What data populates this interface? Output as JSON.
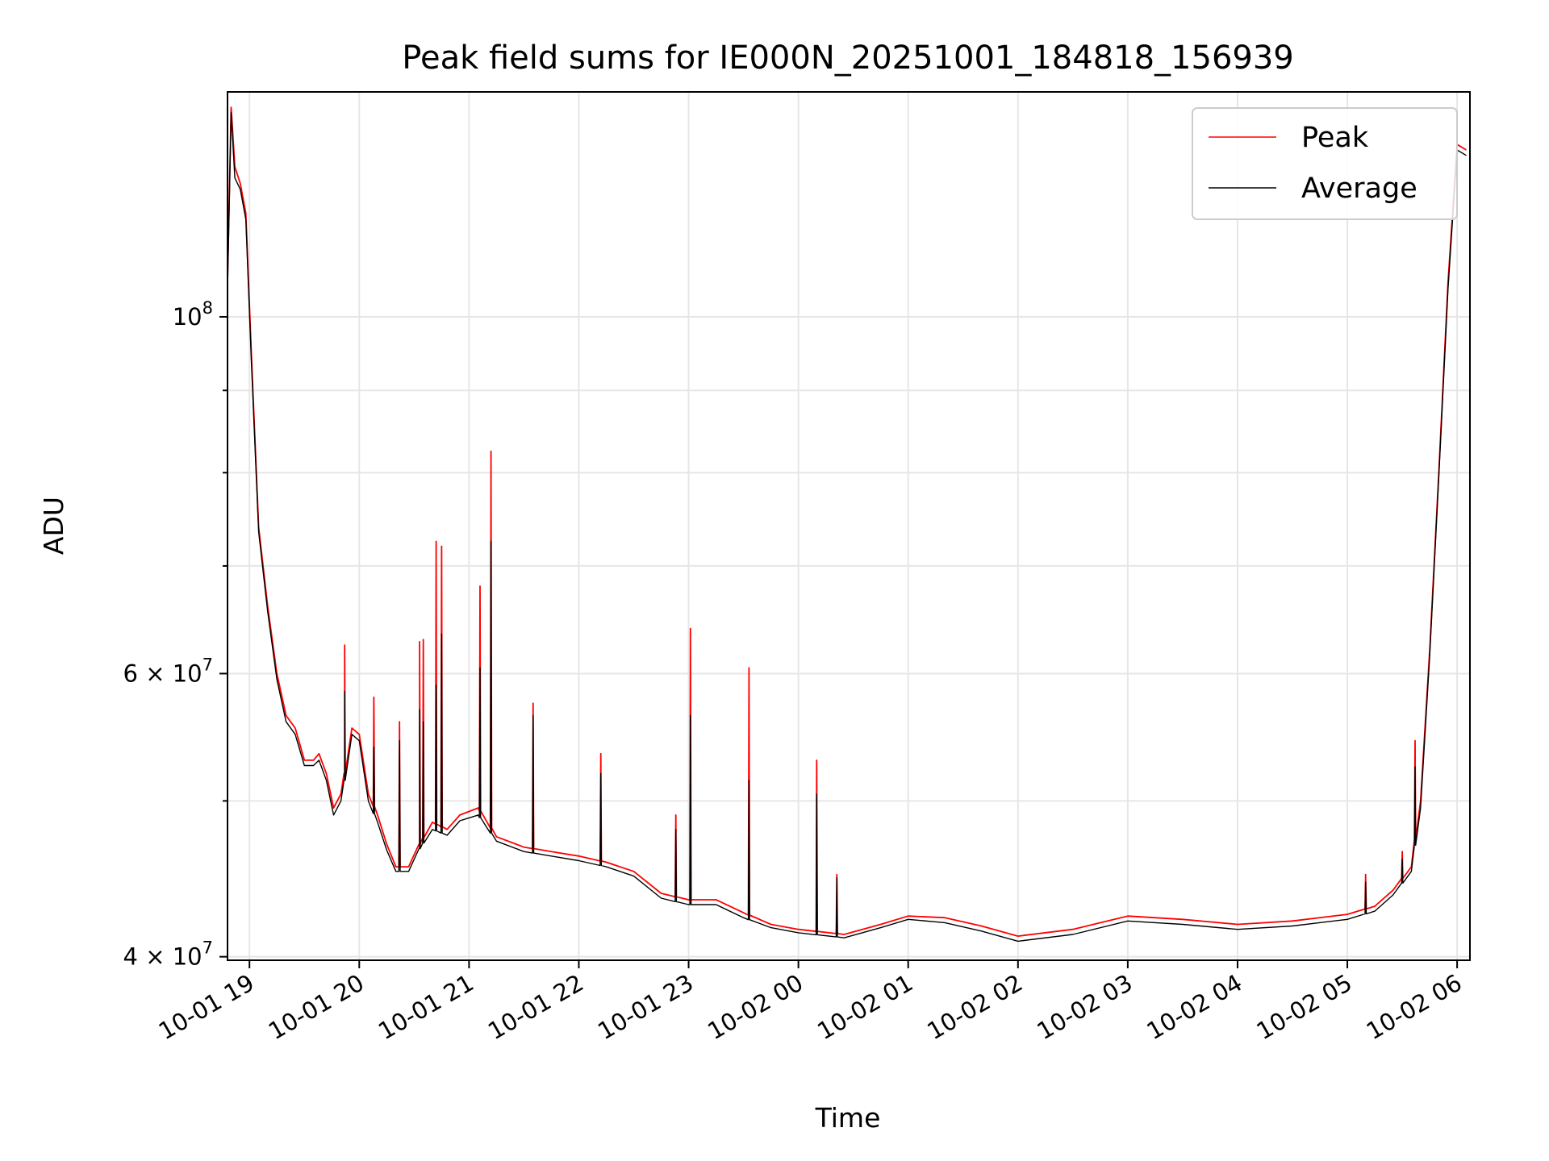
{
  "chart_data": {
    "type": "line",
    "title": "Peak field sums for IE000N_20251001_184818_156939",
    "xlabel": "Time",
    "ylabel": "ADU",
    "yscale": "log",
    "grid": true,
    "legend_placement": "upper right",
    "x_ticks": [
      "10-01 19",
      "10-01 20",
      "10-01 21",
      "10-01 22",
      "10-01 23",
      "10-02 00",
      "10-02 01",
      "10-02 02",
      "10-02 03",
      "10-02 04",
      "10-02 05",
      "10-02 06"
    ],
    "y_ticks": [
      {
        "value": 40000000,
        "base": "4",
        "exp": "7"
      },
      {
        "value": 60000000,
        "base": "6",
        "exp": "7"
      },
      {
        "value": 100000000,
        "base": "10",
        "exp": "8",
        "pure": true
      }
    ],
    "x_range": [
      "2025-10-01 18:48",
      "2025-10-02 06:07"
    ],
    "y_range": [
      39800000,
      138000000
    ],
    "series": [
      {
        "name": "Peak",
        "color": "#ff0000",
        "points": [
          [
            "2025-10-01 18:48",
            105000000
          ],
          [
            "2025-10-01 18:50",
            135000000
          ],
          [
            "2025-10-01 18:52",
            124000000
          ],
          [
            "2025-10-01 18:55",
            121000000
          ],
          [
            "2025-10-01 18:58",
            116000000
          ],
          [
            "2025-10-01 19:01",
            95000000
          ],
          [
            "2025-10-01 19:05",
            74000000
          ],
          [
            "2025-10-01 19:10",
            66000000
          ],
          [
            "2025-10-01 19:15",
            60000000
          ],
          [
            "2025-10-01 19:20",
            56500000
          ],
          [
            "2025-10-01 19:25",
            55500000
          ],
          [
            "2025-10-01 19:30",
            53000000
          ],
          [
            "2025-10-01 19:35",
            53000000
          ],
          [
            "2025-10-01 19:38",
            53500000
          ],
          [
            "2025-10-01 19:42",
            52000000
          ],
          [
            "2025-10-01 19:46",
            49500000
          ],
          [
            "2025-10-01 19:50",
            50500000
          ],
          [
            "2025-10-01 19:52",
            52000000
          ],
          [
            "2025-10-01 19:56",
            55500000
          ],
          [
            "2025-10-01 20:00",
            55000000
          ],
          [
            "2025-10-01 20:05",
            50500000
          ],
          [
            "2025-10-01 20:10",
            49000000
          ],
          [
            "2025-10-01 20:15",
            47000000
          ],
          [
            "2025-10-01 20:20",
            45500000
          ],
          [
            "2025-10-01 20:27",
            45500000
          ],
          [
            "2025-10-01 20:33",
            47000000
          ],
          [
            "2025-10-01 20:40",
            48500000
          ],
          [
            "2025-10-01 20:48",
            48000000
          ],
          [
            "2025-10-01 20:55",
            49000000
          ],
          [
            "2025-10-01 21:05",
            49500000
          ],
          [
            "2025-10-01 21:15",
            47500000
          ],
          [
            "2025-10-01 21:30",
            46800000
          ],
          [
            "2025-10-01 21:45",
            46500000
          ],
          [
            "2025-10-01 22:00",
            46200000
          ],
          [
            "2025-10-01 22:15",
            45800000
          ],
          [
            "2025-10-01 22:30",
            45200000
          ],
          [
            "2025-10-01 22:45",
            43800000
          ],
          [
            "2025-10-01 23:00",
            43400000
          ],
          [
            "2025-10-01 23:15",
            43400000
          ],
          [
            "2025-10-01 23:30",
            42600000
          ],
          [
            "2025-10-01 23:45",
            41900000
          ],
          [
            "2025-10-02 00:00",
            41600000
          ],
          [
            "2025-10-02 00:25",
            41300000
          ],
          [
            "2025-10-02 00:45",
            41900000
          ],
          [
            "2025-10-02 01:00",
            42400000
          ],
          [
            "2025-10-02 01:20",
            42300000
          ],
          [
            "2025-10-02 01:40",
            41800000
          ],
          [
            "2025-10-02 02:00",
            41200000
          ],
          [
            "2025-10-02 02:30",
            41600000
          ],
          [
            "2025-10-02 03:00",
            42400000
          ],
          [
            "2025-10-02 03:30",
            42200000
          ],
          [
            "2025-10-02 04:00",
            41900000
          ],
          [
            "2025-10-02 04:30",
            42100000
          ],
          [
            "2025-10-02 05:00",
            42500000
          ],
          [
            "2025-10-02 05:15",
            43000000
          ],
          [
            "2025-10-02 05:25",
            44000000
          ],
          [
            "2025-10-02 05:35",
            45500000
          ],
          [
            "2025-10-02 05:40",
            50000000
          ],
          [
            "2025-10-02 05:45",
            62000000
          ],
          [
            "2025-10-02 05:50",
            80000000
          ],
          [
            "2025-10-02 05:55",
            105000000
          ],
          [
            "2025-10-02 06:00",
            128000000
          ],
          [
            "2025-10-02 06:05",
            127000000
          ]
        ],
        "spikes": [
          [
            "2025-10-01 19:52",
            62500000
          ],
          [
            "2025-10-01 20:08",
            58000000
          ],
          [
            "2025-10-01 20:22",
            56000000
          ],
          [
            "2025-10-01 20:33",
            62800000
          ],
          [
            "2025-10-01 20:35",
            63000000
          ],
          [
            "2025-10-01 20:42",
            72500000
          ],
          [
            "2025-10-01 20:45",
            72000000
          ],
          [
            "2025-10-01 21:06",
            68000000
          ],
          [
            "2025-10-01 21:12",
            82500000
          ],
          [
            "2025-10-01 21:35",
            57500000
          ],
          [
            "2025-10-01 22:12",
            53500000
          ],
          [
            "2025-10-01 22:53",
            49000000
          ],
          [
            "2025-10-01 23:01",
            64000000
          ],
          [
            "2025-10-01 23:33",
            60500000
          ],
          [
            "2025-10-02 00:10",
            53000000
          ],
          [
            "2025-10-02 00:21",
            45000000
          ],
          [
            "2025-10-02 05:10",
            45000000
          ],
          [
            "2025-10-02 05:30",
            46500000
          ],
          [
            "2025-10-02 05:37",
            54500000
          ]
        ]
      },
      {
        "name": "Average",
        "color": "#000000",
        "points": [
          [
            "2025-10-01 18:48",
            104000000
          ],
          [
            "2025-10-01 18:50",
            134000000
          ],
          [
            "2025-10-01 18:52",
            122000000
          ],
          [
            "2025-10-01 18:55",
            120000000
          ],
          [
            "2025-10-01 18:58",
            115000000
          ],
          [
            "2025-10-01 19:01",
            94000000
          ],
          [
            "2025-10-01 19:05",
            73500000
          ],
          [
            "2025-10-01 19:10",
            65500000
          ],
          [
            "2025-10-01 19:15",
            59500000
          ],
          [
            "2025-10-01 19:20",
            56000000
          ],
          [
            "2025-10-01 19:25",
            55000000
          ],
          [
            "2025-10-01 19:30",
            52600000
          ],
          [
            "2025-10-01 19:35",
            52600000
          ],
          [
            "2025-10-01 19:38",
            53000000
          ],
          [
            "2025-10-01 19:42",
            51500000
          ],
          [
            "2025-10-01 19:46",
            49000000
          ],
          [
            "2025-10-01 19:50",
            50000000
          ],
          [
            "2025-10-01 19:52",
            51500000
          ],
          [
            "2025-10-01 19:56",
            55000000
          ],
          [
            "2025-10-01 20:00",
            54500000
          ],
          [
            "2025-10-01 20:05",
            50000000
          ],
          [
            "2025-10-01 20:10",
            48500000
          ],
          [
            "2025-10-01 20:15",
            46600000
          ],
          [
            "2025-10-01 20:20",
            45200000
          ],
          [
            "2025-10-01 20:27",
            45200000
          ],
          [
            "2025-10-01 20:33",
            46700000
          ],
          [
            "2025-10-01 20:40",
            48000000
          ],
          [
            "2025-10-01 20:48",
            47600000
          ],
          [
            "2025-10-01 20:55",
            48600000
          ],
          [
            "2025-10-01 21:05",
            49000000
          ],
          [
            "2025-10-01 21:15",
            47200000
          ],
          [
            "2025-10-01 21:30",
            46500000
          ],
          [
            "2025-10-01 21:45",
            46200000
          ],
          [
            "2025-10-01 22:00",
            45900000
          ],
          [
            "2025-10-01 22:15",
            45500000
          ],
          [
            "2025-10-01 22:30",
            44900000
          ],
          [
            "2025-10-01 22:45",
            43500000
          ],
          [
            "2025-10-01 23:00",
            43100000
          ],
          [
            "2025-10-01 23:15",
            43100000
          ],
          [
            "2025-10-01 23:30",
            42300000
          ],
          [
            "2025-10-01 23:45",
            41700000
          ],
          [
            "2025-10-02 00:00",
            41400000
          ],
          [
            "2025-10-02 00:25",
            41100000
          ],
          [
            "2025-10-02 00:45",
            41700000
          ],
          [
            "2025-10-02 01:00",
            42200000
          ],
          [
            "2025-10-02 01:20",
            42000000
          ],
          [
            "2025-10-02 01:40",
            41500000
          ],
          [
            "2025-10-02 02:00",
            40900000
          ],
          [
            "2025-10-02 02:30",
            41300000
          ],
          [
            "2025-10-02 03:00",
            42100000
          ],
          [
            "2025-10-02 03:30",
            41900000
          ],
          [
            "2025-10-02 04:00",
            41600000
          ],
          [
            "2025-10-02 04:30",
            41800000
          ],
          [
            "2025-10-02 05:00",
            42200000
          ],
          [
            "2025-10-02 05:15",
            42700000
          ],
          [
            "2025-10-02 05:25",
            43700000
          ],
          [
            "2025-10-02 05:35",
            45200000
          ],
          [
            "2025-10-02 05:40",
            49500000
          ],
          [
            "2025-10-02 05:45",
            61500000
          ],
          [
            "2025-10-02 05:50",
            79500000
          ],
          [
            "2025-10-02 05:55",
            104000000
          ],
          [
            "2025-10-02 06:00",
            127000000
          ],
          [
            "2025-10-02 06:05",
            126000000
          ]
        ],
        "spikes": [
          [
            "2025-10-01 19:52",
            58500000
          ],
          [
            "2025-10-01 20:08",
            54000000
          ],
          [
            "2025-10-01 20:22",
            54500000
          ],
          [
            "2025-10-01 20:33",
            57000000
          ],
          [
            "2025-10-01 20:35",
            56000000
          ],
          [
            "2025-10-01 20:42",
            59000000
          ],
          [
            "2025-10-01 20:45",
            63500000
          ],
          [
            "2025-10-01 21:06",
            60500000
          ],
          [
            "2025-10-01 21:12",
            72500000
          ],
          [
            "2025-10-01 21:35",
            56500000
          ],
          [
            "2025-10-01 22:12",
            52000000
          ],
          [
            "2025-10-01 22:53",
            48000000
          ],
          [
            "2025-10-01 23:01",
            56500000
          ],
          [
            "2025-10-01 23:33",
            51500000
          ],
          [
            "2025-10-02 00:10",
            50500000
          ],
          [
            "2025-10-02 00:21",
            44800000
          ],
          [
            "2025-10-02 05:10",
            44500000
          ],
          [
            "2025-10-02 05:30",
            46000000
          ],
          [
            "2025-10-02 05:37",
            52500000
          ]
        ]
      }
    ]
  }
}
